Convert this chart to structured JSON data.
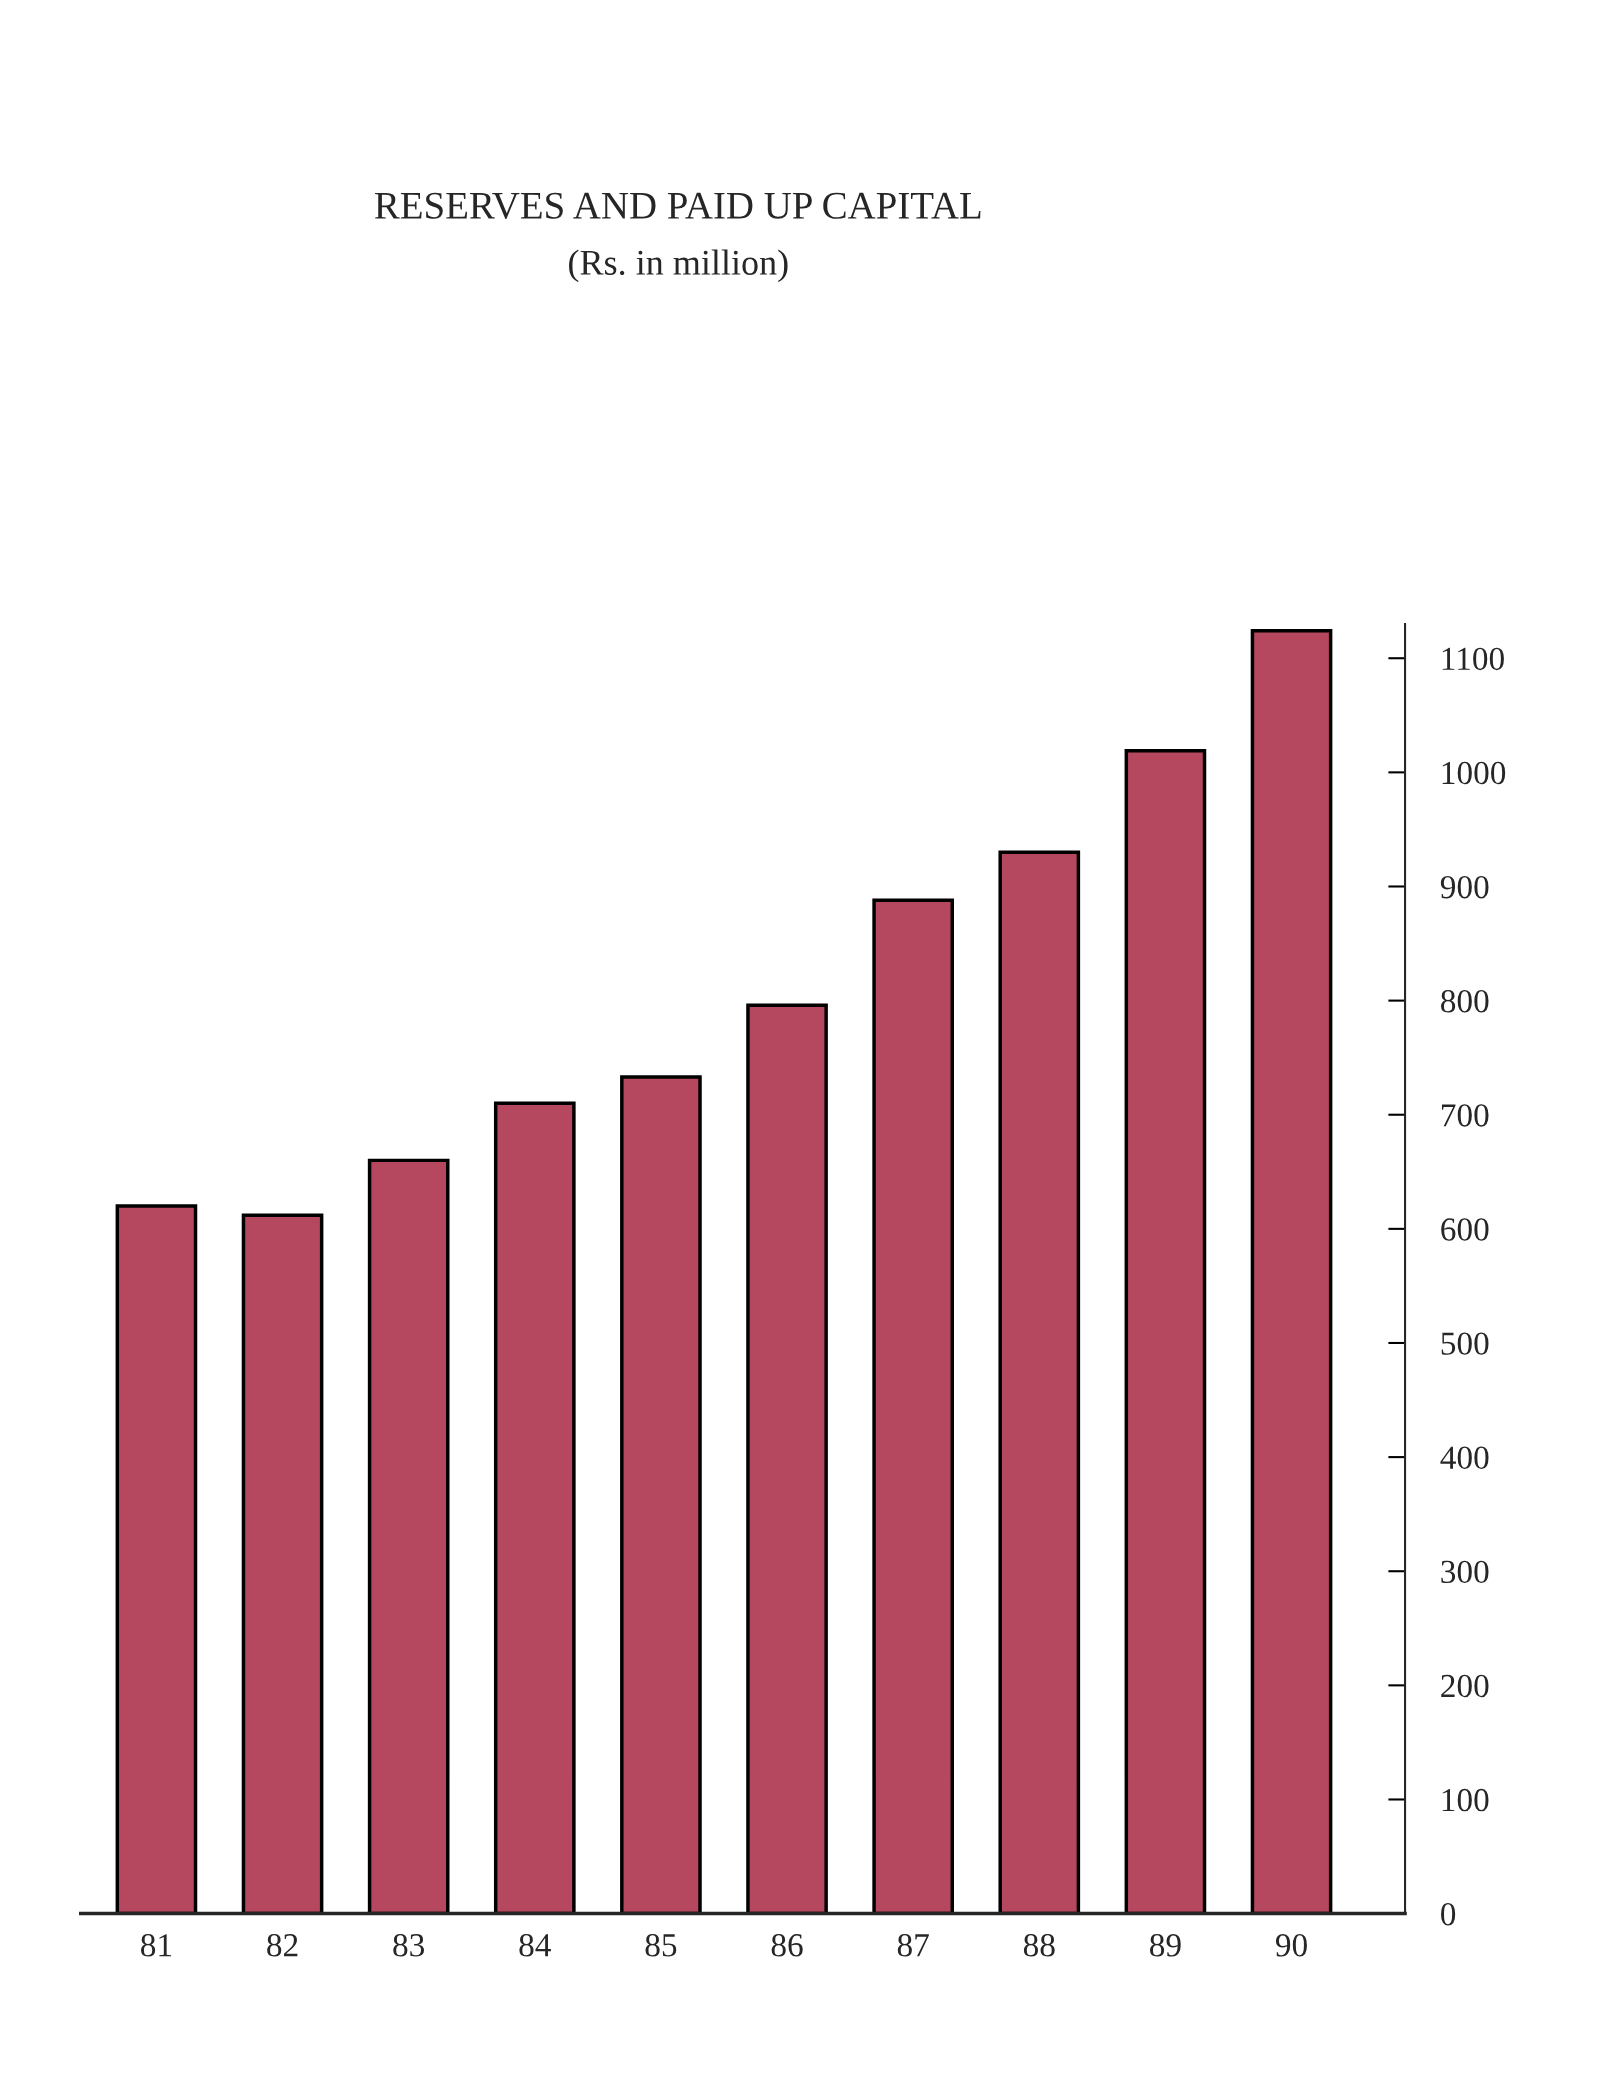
{
  "chart_data": {
    "type": "bar",
    "title": "RESERVES AND PAID UP CAPITAL",
    "subtitle": "(Rs. in million)",
    "categories": [
      "81",
      "82",
      "83",
      "84",
      "85",
      "86",
      "87",
      "88",
      "89",
      "90"
    ],
    "values": [
      620,
      612,
      660,
      710,
      733,
      796,
      888,
      930,
      1019,
      1124
    ],
    "color": "#b5485e",
    "ylim": [
      0,
      1130
    ],
    "yticks": [
      0,
      100,
      200,
      300,
      400,
      500,
      600,
      700,
      800,
      900,
      1000,
      1100
    ],
    "grid": false
  }
}
